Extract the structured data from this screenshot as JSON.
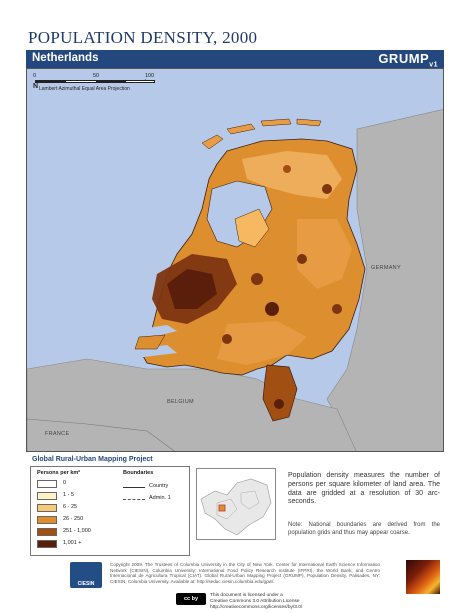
{
  "title": "POPULATION DENSITY, 2000",
  "banner": {
    "country": "Netherlands",
    "brand": "GRUMP",
    "brand_sub": "v1"
  },
  "map": {
    "scale": {
      "ticks": [
        "0",
        "50",
        "100 km"
      ],
      "projection": "Lambert Azimuthal Equal Area Projection",
      "north": "N"
    },
    "labels": {
      "germany": "GERMANY",
      "belgium": "BELGIUM",
      "france": "FRANCE"
    },
    "colors": {
      "sea": "#b7c9e8",
      "neighbor": "#b4b4b4",
      "class1": "#fff7cf",
      "class2": "#fddc9a",
      "class3": "#f6b861",
      "class4": "#d98a2c",
      "class5": "#a24f14",
      "class6": "#5a1f0a"
    }
  },
  "project_title": "Global Rural-Urban Mapping Project",
  "legend": {
    "header": "Persons per km²",
    "classes": [
      {
        "label": "0",
        "color": "#ffffff"
      },
      {
        "label": "1 - 5",
        "color": "#fff2c4"
      },
      {
        "label": "6 - 25",
        "color": "#f7c877"
      },
      {
        "label": "26 - 250",
        "color": "#dd8f2f"
      },
      {
        "label": "251 - 1,000",
        "color": "#a24f14"
      },
      {
        "label": "1,001 +",
        "color": "#5a1f0a"
      }
    ],
    "boundaries_header": "Boundaries",
    "boundaries": [
      {
        "label": "Country",
        "style": "solid"
      },
      {
        "label": "Admin. 1",
        "style": "dashed"
      }
    ]
  },
  "description": "Population density measures the number of persons per square kilometer of land area. The data are gridded at a resolution of 30 arc-seconds.",
  "note": "Note: National boundaries are derived from the population grids and thus may appear coarse.",
  "footer": {
    "logo": "CIESIN",
    "copyright": "Copyright 2009. The Trustees of Columbia University in the City of New York. Center for International Earth Science Information Network (CIESIN), Columbia University; International Food Policy Research Institute (IFPRI), the World Bank; and Centro Internacional de Agricultura Tropical (CIAT). Global Rural-Urban Mapping Project (GRUMP), Population Density, Palisades, NY: CIESIN, Columbia University. Available at: http://sedac.ciesin.columbia.edu/gpw/.",
    "cc": "cc by",
    "license_line1": "This document is licensed under a",
    "license_line2": "Creative Commons 3.0 Attribution License",
    "license_line3": "http://creativecommons.org/licenses/by/3.0/"
  }
}
